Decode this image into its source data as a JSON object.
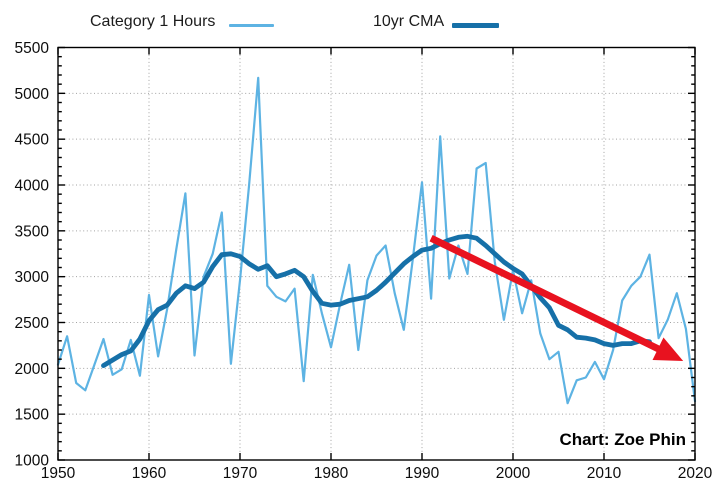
{
  "credit": "Chart: Zoe Phin",
  "legend": {
    "items": [
      {
        "label": "Category 1 Hours",
        "swatch_color": "#5db3e3",
        "swatch_height": 3
      },
      {
        "label": "10yr CMA",
        "swatch_color": "#1670a8",
        "swatch_height": 5
      }
    ]
  },
  "chart_data": {
    "type": "line",
    "title": "",
    "xlabel": "",
    "ylabel": "",
    "xlim": [
      1950,
      2020
    ],
    "ylim": [
      1000,
      5500
    ],
    "grid": "dotted",
    "grid_color": "#a3a3a3",
    "axis_color": "#000000",
    "legend_position": "top",
    "x_tick_labels": [
      1950,
      1960,
      1970,
      1980,
      1990,
      2000,
      2010,
      2020
    ],
    "y_tick_labels": [
      1000,
      1500,
      2000,
      2500,
      3000,
      3500,
      4000,
      4500,
      5000,
      5500
    ],
    "y_minor_step": 100,
    "series": [
      {
        "name": "Category 1 Hours",
        "color": "#5db3e3",
        "stroke_width": 2.2,
        "x_start": 1950,
        "step": 1,
        "values": [
          2040,
          2350,
          1840,
          1760,
          2040,
          2320,
          1930,
          1990,
          2310,
          1920,
          2800,
          2130,
          2650,
          3300,
          3910,
          2140,
          3000,
          3250,
          3700,
          2050,
          2960,
          4000,
          5170,
          2900,
          2780,
          2730,
          2870,
          1860,
          3020,
          2600,
          2230,
          2700,
          3130,
          2200,
          2960,
          3230,
          3340,
          2820,
          2420,
          3200,
          4030,
          2760,
          4530,
          2980,
          3340,
          3030,
          4180,
          4240,
          3160,
          2530,
          3070,
          2600,
          2960,
          2380,
          2100,
          2180,
          1620,
          1870,
          1900,
          2070,
          1880,
          2200,
          2740,
          2900,
          3000,
          3240,
          2330,
          2530,
          2820,
          2430,
          1640
        ]
      },
      {
        "name": "10yr CMA",
        "color": "#1670a8",
        "stroke_width": 4.8,
        "x_start": 1955,
        "step": 1,
        "values": [
          2030,
          2090,
          2150,
          2190,
          2320,
          2520,
          2640,
          2690,
          2820,
          2900,
          2870,
          2940,
          3110,
          3240,
          3250,
          3220,
          3140,
          3080,
          3120,
          3000,
          3030,
          3070,
          3000,
          2840,
          2710,
          2690,
          2700,
          2740,
          2760,
          2780,
          2850,
          2940,
          3040,
          3140,
          3220,
          3290,
          3310,
          3360,
          3400,
          3430,
          3440,
          3420,
          3340,
          3250,
          3160,
          3090,
          3030,
          2900,
          2770,
          2660,
          2470,
          2420,
          2340,
          2330,
          2310,
          2270,
          2250,
          2270,
          2270,
          2300,
          2290
        ]
      }
    ],
    "annotations": {
      "trend_arrow": {
        "color": "#e8121f",
        "x1": 1991,
        "y1": 3420,
        "x2": 2018.7,
        "y2": 2080,
        "shaft_width": 7
      },
      "credit_text": "Chart: Zoe Phin"
    }
  }
}
